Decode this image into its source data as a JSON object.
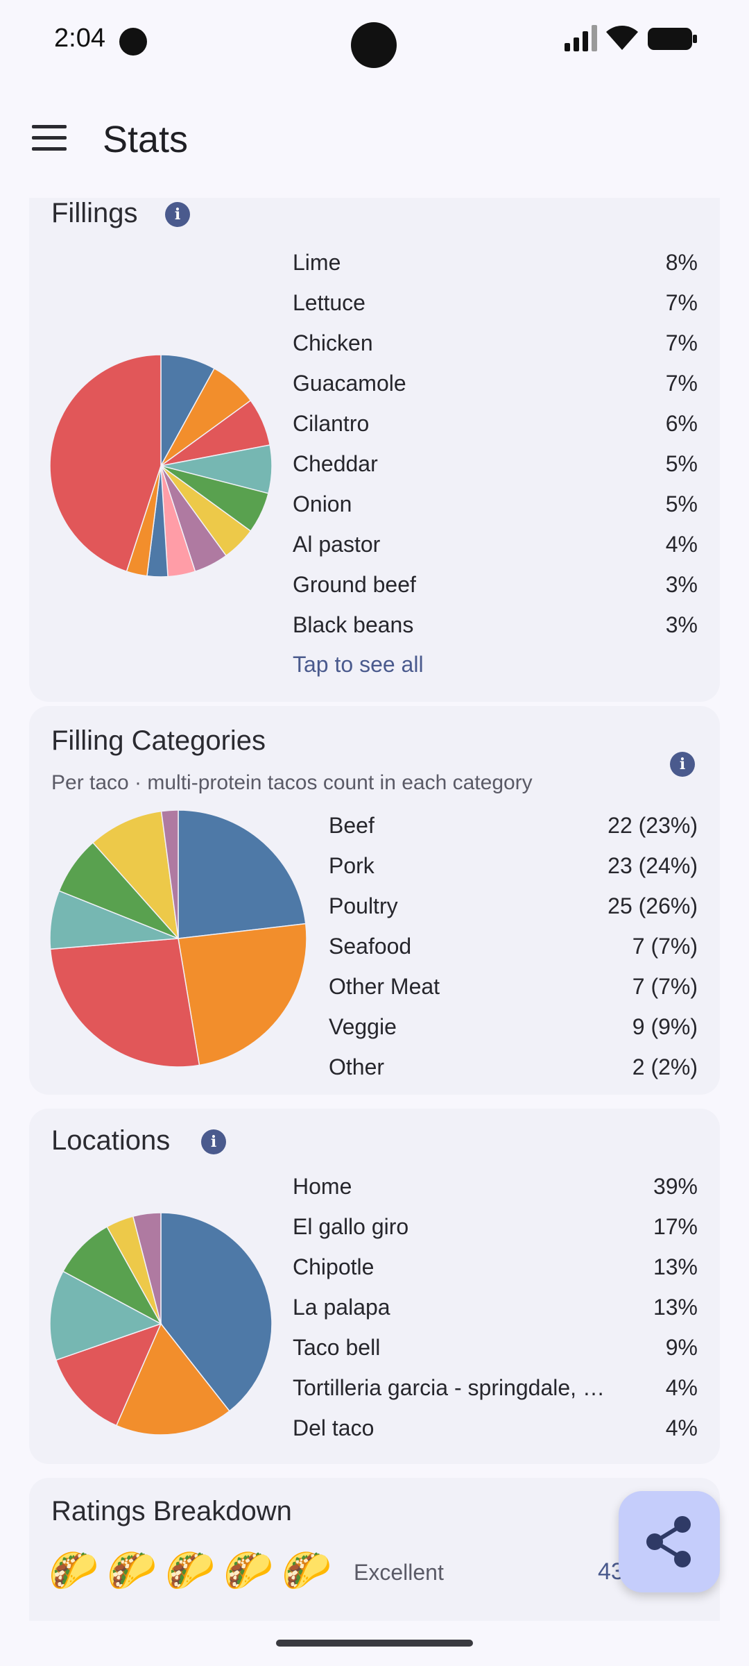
{
  "status": {
    "time": "2:04"
  },
  "app_bar": {
    "title": "Stats",
    "menu_icon": "hamburger-menu-icon"
  },
  "fillings": {
    "title": "Fillings",
    "info_icon": "info-icon",
    "items": [
      {
        "label": "Lime",
        "value": "8%"
      },
      {
        "label": "Lettuce",
        "value": "7%"
      },
      {
        "label": "Chicken",
        "value": "7%"
      },
      {
        "label": "Guacamole",
        "value": "7%"
      },
      {
        "label": "Cilantro",
        "value": "6%"
      },
      {
        "label": "Cheddar",
        "value": "5%"
      },
      {
        "label": "Onion",
        "value": "5%"
      },
      {
        "label": "Al pastor",
        "value": "4%"
      },
      {
        "label": "Ground beef",
        "value": "3%"
      },
      {
        "label": "Black beans",
        "value": "3%"
      }
    ],
    "tap_all": "Tap to see all",
    "slices": [
      {
        "value": 8,
        "color": "#4e79a7"
      },
      {
        "value": 7,
        "color": "#f28e2c"
      },
      {
        "value": 7,
        "color": "#e15759"
      },
      {
        "value": 7,
        "color": "#76b7b2"
      },
      {
        "value": 6,
        "color": "#59a14f"
      },
      {
        "value": 5,
        "color": "#edc949"
      },
      {
        "value": 5,
        "color": "#af7aa1"
      },
      {
        "value": 4,
        "color": "#ff9da7"
      },
      {
        "value": 3,
        "color": "#4e79a7"
      },
      {
        "value": 3,
        "color": "#f28e2c"
      },
      {
        "value": 45,
        "color": "#e15759"
      }
    ]
  },
  "categories": {
    "title": "Filling Categories",
    "subtitle": "Per taco · multi-protein tacos count in each category",
    "info_icon": "info-icon",
    "items": [
      {
        "label": "Beef",
        "value": "22 (23%)"
      },
      {
        "label": "Pork",
        "value": "23 (24%)"
      },
      {
        "label": "Poultry",
        "value": "25 (26%)"
      },
      {
        "label": "Seafood",
        "value": "7 (7%)"
      },
      {
        "label": "Other Meat",
        "value": "7 (7%)"
      },
      {
        "label": "Veggie",
        "value": "9 (9%)"
      },
      {
        "label": "Other",
        "value": "2 (2%)"
      }
    ],
    "slices": [
      {
        "value": 22,
        "color": "#4e79a7"
      },
      {
        "value": 23,
        "color": "#f28e2c"
      },
      {
        "value": 25,
        "color": "#e15759"
      },
      {
        "value": 7,
        "color": "#76b7b2"
      },
      {
        "value": 7,
        "color": "#59a14f"
      },
      {
        "value": 9,
        "color": "#edc949"
      },
      {
        "value": 2,
        "color": "#af7aa1"
      }
    ]
  },
  "locations": {
    "title": "Locations",
    "info_icon": "info-icon",
    "items": [
      {
        "label": "Home",
        "value": "39%"
      },
      {
        "label": "El gallo giro",
        "value": "17%"
      },
      {
        "label": "Chipotle",
        "value": "13%"
      },
      {
        "label": "La palapa",
        "value": "13%"
      },
      {
        "label": "Taco bell",
        "value": "9%"
      },
      {
        "label": "Tortilleria garcia - springdale, sp...",
        "value": "4%"
      },
      {
        "label": "Del taco",
        "value": "4%"
      }
    ],
    "slices": [
      {
        "value": 39,
        "color": "#4e79a7"
      },
      {
        "value": 17,
        "color": "#f28e2c"
      },
      {
        "value": 13,
        "color": "#e15759"
      },
      {
        "value": 13,
        "color": "#76b7b2"
      },
      {
        "value": 9,
        "color": "#59a14f"
      },
      {
        "value": 4,
        "color": "#edc949"
      },
      {
        "value": 4,
        "color": "#af7aa1"
      }
    ]
  },
  "ratings": {
    "title": "Ratings Breakdown",
    "first_row": {
      "icons": [
        "🌮",
        "🌮",
        "🌮",
        "🌮",
        "🌮"
      ],
      "label": "Excellent",
      "count": "43 tacos"
    }
  },
  "fab": {
    "icon": "share-icon"
  }
}
